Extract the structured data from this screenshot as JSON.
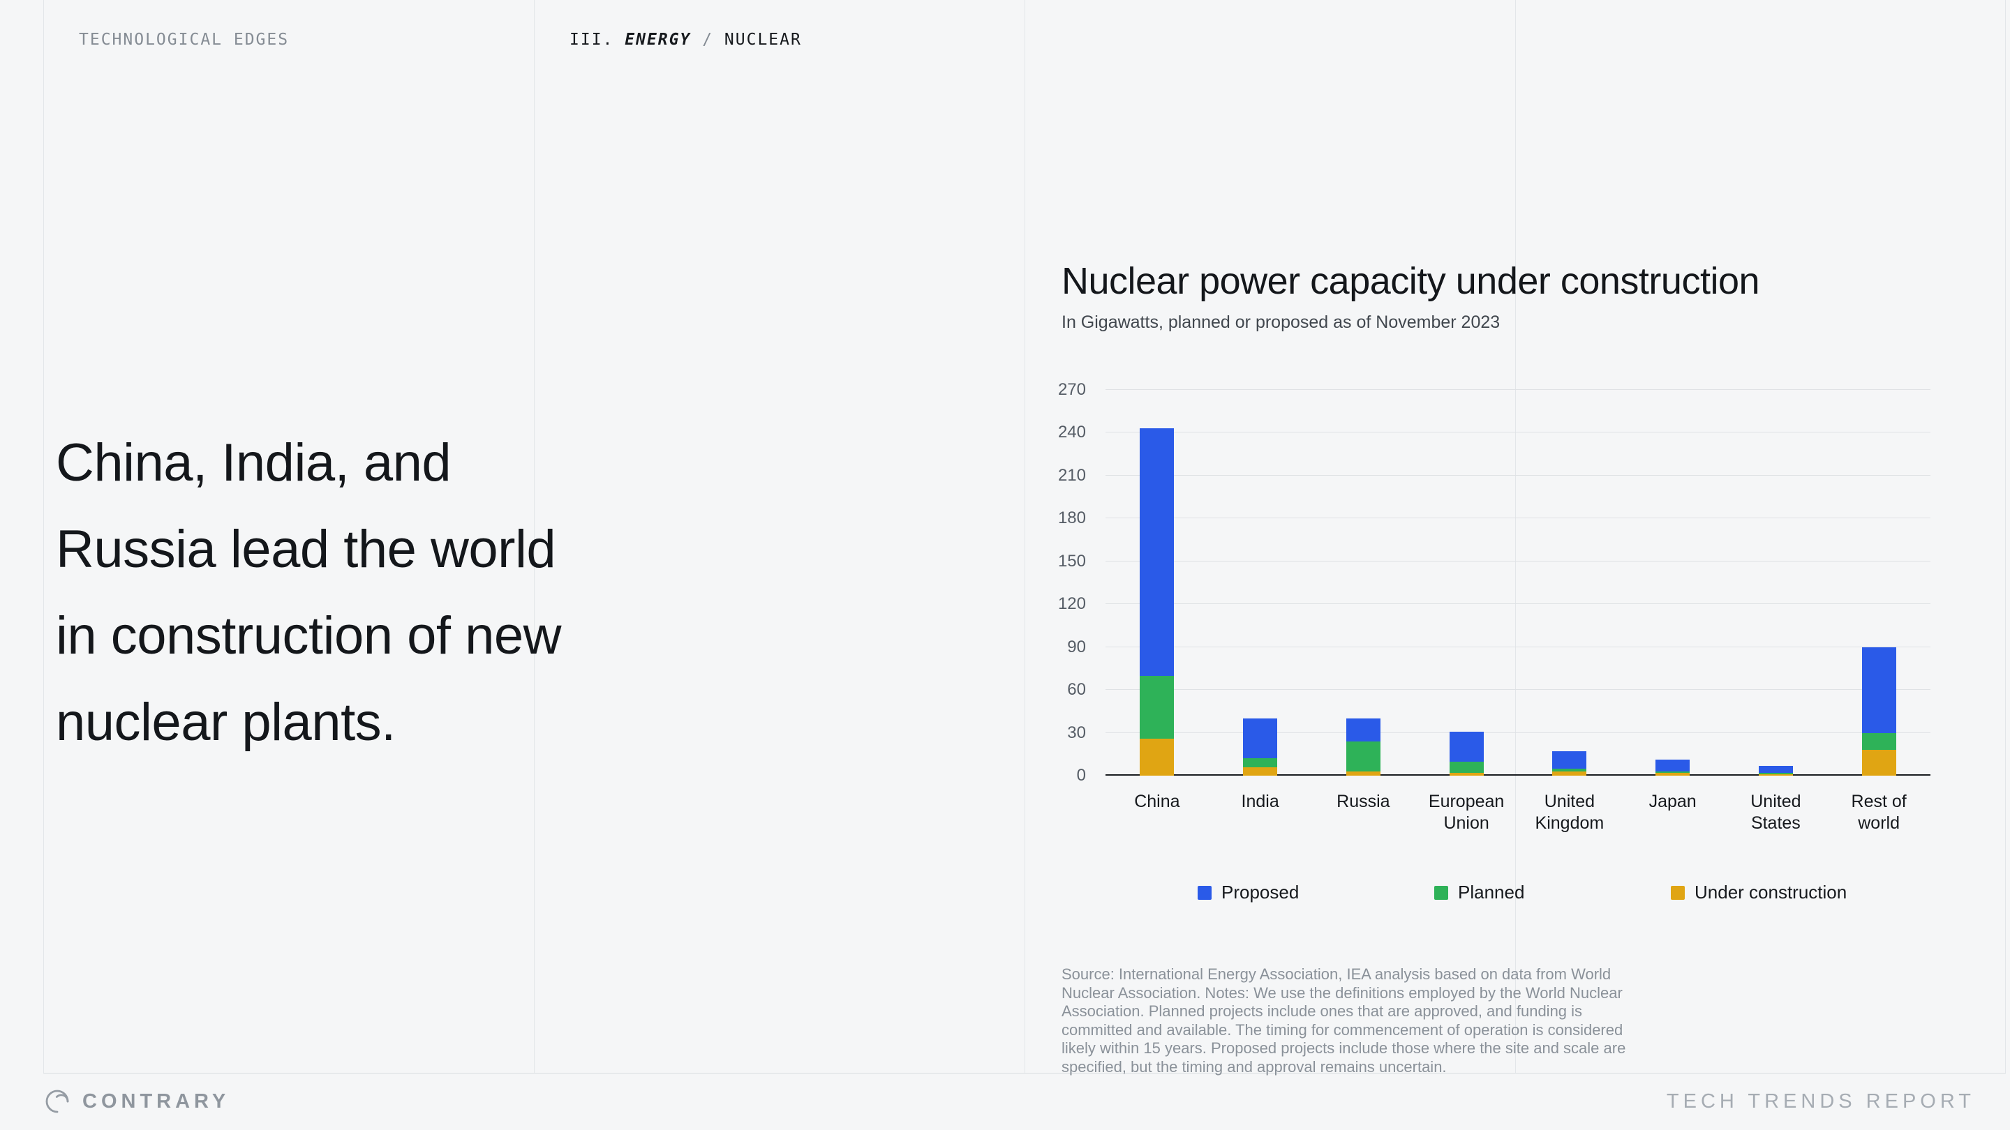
{
  "header": {
    "eyebrow": "TECHNOLOGICAL EDGES",
    "breadcrumb": {
      "section": "III.",
      "category": "ENERGY",
      "separator": "/",
      "page": "NUCLEAR"
    }
  },
  "headline": "China, India, and\nRussia lead the world\nin construction of new\nnuclear plants.",
  "chart": {
    "title": "Nuclear power capacity under construction",
    "subtitle": "In Gigawatts, planned or proposed as of November 2023",
    "source": "Source: International Energy Association, IEA analysis based on data from World Nuclear Association. Notes: We use the definitions employed by the World Nuclear Association. Planned projects include ones that are approved, and funding is committed and available. The timing for commencement of operation is considered likely within 15 years. Proposed projects include those where the site and scale are specified, but the timing and approval remains uncertain."
  },
  "chart_data": {
    "type": "bar",
    "stacked": true,
    "title": "Nuclear power capacity under construction",
    "subtitle": "In Gigawatts, planned or proposed as of November 2023",
    "categories": [
      "China",
      "India",
      "Russia",
      "European Union",
      "United Kingdom",
      "Japan",
      "United States",
      "Rest of world"
    ],
    "series": [
      {
        "name": "Under construction",
        "color": "#E0A513",
        "values": [
          26,
          6,
          3,
          2,
          3,
          2,
          1,
          18
        ]
      },
      {
        "name": "Planned",
        "color": "#2EB258",
        "values": [
          44,
          6,
          21,
          8,
          2,
          1,
          1,
          12
        ]
      },
      {
        "name": "Proposed",
        "color": "#2A5AE8",
        "values": [
          173,
          28,
          16,
          21,
          12,
          8,
          5,
          60
        ]
      }
    ],
    "legend_order": [
      "Proposed",
      "Planned",
      "Under construction"
    ],
    "xlabel": "",
    "ylabel": "",
    "ylim": [
      0,
      270
    ],
    "yticks": [
      0,
      30,
      60,
      90,
      120,
      150,
      180,
      210,
      240,
      270
    ],
    "grid": true,
    "legend_position": "bottom"
  },
  "footer": {
    "brand": "CONTRARY",
    "report": "TECH TRENDS REPORT"
  }
}
